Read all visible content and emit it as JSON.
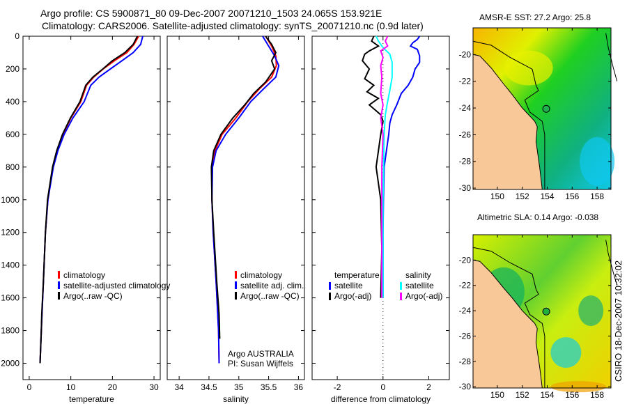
{
  "header": {
    "line1": "Argo profile: CS 5900871_80 09-Dec-2007 20071210_1503 24.065S 153.921E",
    "line2": "Climatology: CARS2006. Satellite-adjusted climatology: synTS_20071210.nc (0.9d later)"
  },
  "chart_data": [
    {
      "type": "line",
      "id": "temperature",
      "xlabel": "temperature",
      "ylabel": "",
      "xlim": [
        -1.5,
        31.5
      ],
      "ylim": [
        2100,
        0
      ],
      "xticks": [
        0,
        10,
        20,
        30
      ],
      "yticks": [
        0,
        200,
        400,
        600,
        800,
        1000,
        1200,
        1400,
        1600,
        1800,
        2000
      ],
      "legend": [
        "climatology",
        "satellite-adjusted climatology",
        "Argo(..raw -QC)"
      ],
      "legend_placement": "lower-left",
      "series": [
        {
          "name": "climatology",
          "color": "#ff0000",
          "points": [
            [
              26.3,
              0
            ],
            [
              25.2,
              50
            ],
            [
              23.5,
              100
            ],
            [
              20.5,
              150
            ],
            [
              17.8,
              200
            ],
            [
              15.5,
              250
            ],
            [
              13.8,
              300
            ],
            [
              12.4,
              400
            ],
            [
              10.0,
              500
            ],
            [
              8.1,
              600
            ],
            [
              6.8,
              700
            ],
            [
              5.7,
              800
            ],
            [
              4.5,
              1000
            ],
            [
              3.9,
              1200
            ],
            [
              3.4,
              1500
            ],
            [
              2.9,
              1800
            ],
            [
              2.6,
              2000
            ]
          ]
        },
        {
          "name": "satellite-adjusted climatology",
          "color": "#0000ff",
          "points": [
            [
              27.3,
              0
            ],
            [
              26.8,
              50
            ],
            [
              25.0,
              100
            ],
            [
              22.3,
              150
            ],
            [
              19.5,
              200
            ],
            [
              16.8,
              250
            ],
            [
              14.8,
              300
            ],
            [
              13.2,
              400
            ],
            [
              10.5,
              500
            ],
            [
              8.4,
              600
            ],
            [
              6.9,
              700
            ],
            [
              5.8,
              800
            ],
            [
              4.5,
              1000
            ],
            [
              3.9,
              1200
            ],
            [
              3.4,
              1500
            ],
            [
              2.9,
              1800
            ],
            [
              2.6,
              2000
            ]
          ]
        },
        {
          "name": "Argo(..raw -QC)",
          "color": "#000000",
          "points": [
            [
              26.0,
              0
            ],
            [
              25.0,
              50
            ],
            [
              23.0,
              100
            ],
            [
              20.0,
              150
            ],
            [
              17.7,
              200
            ],
            [
              15.3,
              250
            ],
            [
              13.6,
              300
            ],
            [
              12.2,
              400
            ],
            [
              9.9,
              500
            ],
            [
              8.0,
              600
            ],
            [
              6.6,
              700
            ],
            [
              5.6,
              800
            ],
            [
              4.4,
              1000
            ],
            [
              3.9,
              1200
            ],
            [
              3.4,
              1500
            ],
            [
              3.0,
              1700
            ],
            [
              2.9,
              1800
            ],
            [
              2.6,
              2000
            ]
          ]
        }
      ]
    },
    {
      "type": "line",
      "id": "salinity",
      "xlabel": "salinity",
      "xlim": [
        33.8,
        36.1
      ],
      "ylim": [
        2100,
        0
      ],
      "xticks": [
        34,
        34.5,
        35,
        35.5,
        36
      ],
      "legend": [
        "climatology",
        "satellite adj. clim.",
        "Argo(..raw -QC)"
      ],
      "legend_placement": "lower-right",
      "annotation": [
        "Argo AUSTRALIA",
        "PI: Susan Wijffels"
      ],
      "series": [
        {
          "name": "climatology",
          "color": "#ff0000",
          "points": [
            [
              35.45,
              0
            ],
            [
              35.55,
              60
            ],
            [
              35.62,
              120
            ],
            [
              35.63,
              180
            ],
            [
              35.55,
              250
            ],
            [
              35.35,
              320
            ],
            [
              35.15,
              400
            ],
            [
              34.95,
              500
            ],
            [
              34.72,
              600
            ],
            [
              34.6,
              700
            ],
            [
              34.55,
              800
            ],
            [
              34.55,
              1000
            ],
            [
              34.57,
              1200
            ],
            [
              34.62,
              1500
            ],
            [
              34.66,
              1800
            ],
            [
              34.67,
              2000
            ]
          ]
        },
        {
          "name": "satellite adj. clim.",
          "color": "#0000ff",
          "points": [
            [
              35.4,
              0
            ],
            [
              35.5,
              60
            ],
            [
              35.6,
              120
            ],
            [
              35.67,
              180
            ],
            [
              35.62,
              250
            ],
            [
              35.42,
              320
            ],
            [
              35.2,
              400
            ],
            [
              35.0,
              500
            ],
            [
              34.78,
              600
            ],
            [
              34.62,
              700
            ],
            [
              34.56,
              800
            ],
            [
              34.55,
              1000
            ],
            [
              34.57,
              1200
            ],
            [
              34.62,
              1500
            ],
            [
              34.66,
              1800
            ],
            [
              34.67,
              2000
            ]
          ]
        },
        {
          "name": "Argo(..raw -QC)",
          "color": "#000000",
          "points": [
            [
              35.45,
              0
            ],
            [
              35.55,
              50
            ],
            [
              35.62,
              100
            ],
            [
              35.55,
              150
            ],
            [
              35.6,
              200
            ],
            [
              35.45,
              280
            ],
            [
              35.25,
              350
            ],
            [
              35.1,
              420
            ],
            [
              34.9,
              500
            ],
            [
              34.7,
              600
            ],
            [
              34.58,
              700
            ],
            [
              34.54,
              800
            ],
            [
              34.55,
              1000
            ],
            [
              34.58,
              1200
            ],
            [
              34.63,
              1500
            ],
            [
              34.67,
              1700
            ],
            [
              34.68,
              1850
            ]
          ]
        }
      ]
    },
    {
      "type": "line",
      "id": "difference",
      "xlabel": "difference from climatology",
      "xlim": [
        -3.1,
        2.9
      ],
      "ylim": [
        2100,
        0
      ],
      "xticks": [
        -2,
        0,
        2
      ],
      "legend": [
        {
          "group": "temperature",
          "items": [
            "satellite",
            "Argo(-adj)"
          ]
        },
        {
          "group": "salinity",
          "items": [
            "satellite",
            "Argo(-adj)"
          ]
        }
      ],
      "legend_placement": "lower-center",
      "series": [
        {
          "name": "temperature satellite",
          "color": "#0000ff",
          "points": [
            [
              1.6,
              0
            ],
            [
              1.5,
              20
            ],
            [
              1.3,
              40
            ],
            [
              1.2,
              60
            ],
            [
              1.5,
              80
            ],
            [
              1.6,
              120
            ],
            [
              1.6,
              160
            ],
            [
              1.4,
              200
            ],
            [
              1.3,
              250
            ],
            [
              1.1,
              300
            ],
            [
              0.8,
              350
            ],
            [
              0.6,
              420
            ],
            [
              0.4,
              480
            ],
            [
              0.3,
              530
            ],
            [
              0.25,
              600
            ],
            [
              0.15,
              700
            ],
            [
              0.05,
              800
            ],
            [
              0.02,
              1000
            ],
            [
              0.0,
              1200
            ],
            [
              0.0,
              1600
            ]
          ]
        },
        {
          "name": "temperature Argo(-adj)",
          "color": "#000000",
          "points": [
            [
              -0.4,
              0
            ],
            [
              -0.5,
              30
            ],
            [
              -0.2,
              60
            ],
            [
              -0.6,
              90
            ],
            [
              -0.8,
              110
            ],
            [
              -0.9,
              150
            ],
            [
              -0.6,
              200
            ],
            [
              -0.8,
              260
            ],
            [
              -0.4,
              300
            ],
            [
              -0.7,
              340
            ],
            [
              -0.2,
              380
            ],
            [
              -0.6,
              420
            ],
            [
              -0.1,
              480
            ],
            [
              0.0,
              520
            ],
            [
              -0.1,
              600
            ],
            [
              -0.2,
              700
            ],
            [
              -0.3,
              800
            ],
            [
              -0.1,
              1000
            ],
            [
              -0.05,
              1300
            ],
            [
              -0.1,
              1600
            ]
          ]
        },
        {
          "name": "salinity satellite",
          "color": "#00ffff",
          "points": [
            [
              -0.3,
              0
            ],
            [
              -0.2,
              30
            ],
            [
              0.0,
              70
            ],
            [
              0.3,
              110
            ],
            [
              0.4,
              160
            ],
            [
              0.4,
              250
            ],
            [
              0.3,
              330
            ],
            [
              0.2,
              400
            ],
            [
              0.1,
              480
            ],
            [
              0.05,
              600
            ],
            [
              0.0,
              1000
            ],
            [
              0.0,
              1600
            ]
          ]
        },
        {
          "name": "salinity Argo(-adj)",
          "color": "#ff00ff",
          "points": [
            [
              0.2,
              0
            ],
            [
              0.1,
              30
            ],
            [
              0.2,
              60
            ],
            [
              -0.1,
              90
            ],
            [
              0.0,
              130
            ],
            [
              -0.1,
              180
            ],
            [
              -0.05,
              250
            ],
            [
              -0.1,
              350
            ],
            [
              0.0,
              420
            ],
            [
              -0.1,
              500
            ],
            [
              0.0,
              600
            ],
            [
              -0.05,
              800
            ],
            [
              -0.05,
              1000
            ],
            [
              -0.05,
              1300
            ],
            [
              -0.05,
              1600
            ]
          ]
        }
      ]
    }
  ],
  "maps": [
    {
      "title": "AMSR-E SST: 27.2 Argo: 25.8",
      "xticks": [
        "150",
        "152",
        "154",
        "156",
        "158"
      ],
      "yticks": [
        "-20",
        "-22",
        "-24",
        "-26",
        "-28",
        "-30"
      ]
    },
    {
      "title": "Altimetric SLA: 0.14 Argo: -0.038",
      "xticks": [
        "150",
        "152",
        "154",
        "156",
        "158"
      ],
      "yticks": [
        "-20",
        "-22",
        "-24",
        "-26",
        "-28",
        "-30"
      ]
    }
  ],
  "stamp": "CSIRO 18-Dec-2007 10:32:02"
}
